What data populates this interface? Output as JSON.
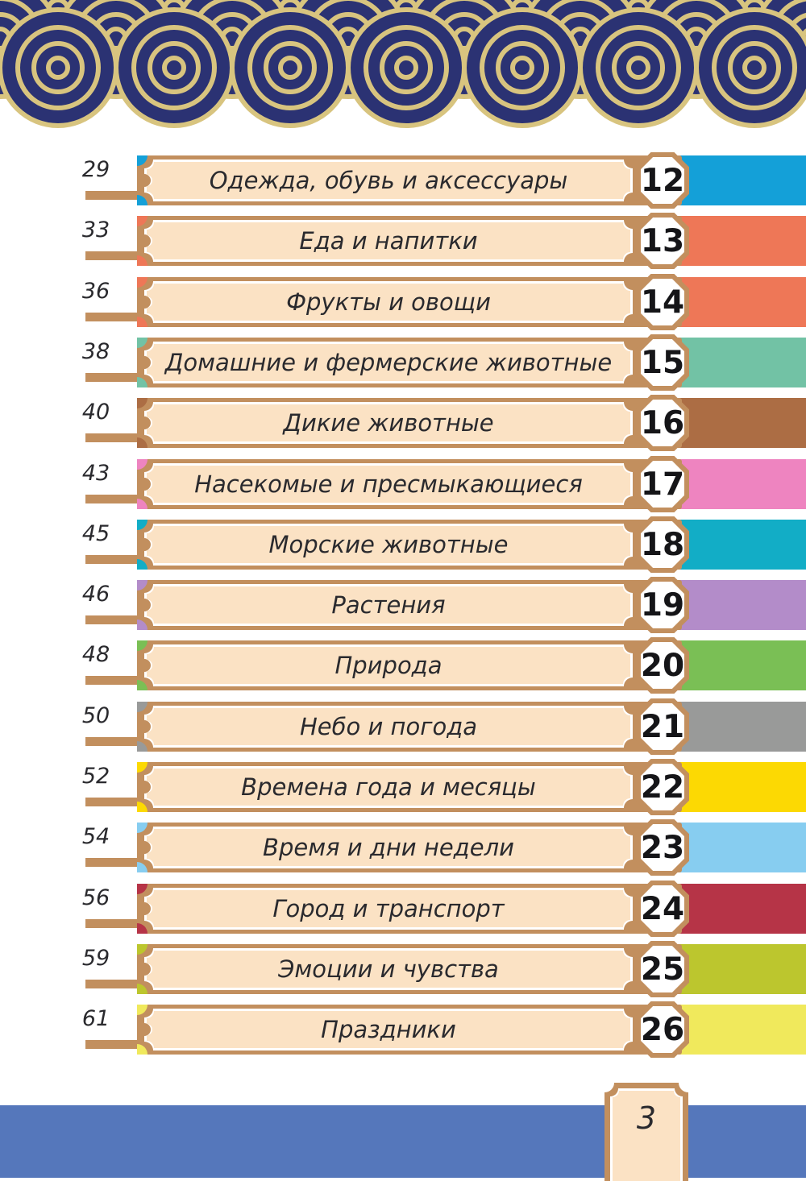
{
  "toc_rows": [
    {
      "page": "29",
      "title": "Одежда, обувь и аксессуары",
      "badge": "12",
      "color": "#14a0d8"
    },
    {
      "page": "33",
      "title": "Еда и напитки",
      "badge": "13",
      "color": "#ee7757"
    },
    {
      "page": "36",
      "title": "Фрукты и овощи",
      "badge": "14",
      "color": "#ee7757"
    },
    {
      "page": "38",
      "title": "Домашние и фермерские животные",
      "badge": "15",
      "color": "#72c2a5"
    },
    {
      "page": "40",
      "title": "Дикие животные",
      "badge": "16",
      "color": "#ac6d44"
    },
    {
      "page": "43",
      "title": "Насекомые и пресмыкающиеся",
      "badge": "17",
      "color": "#ee84c0"
    },
    {
      "page": "45",
      "title": "Морские животные",
      "badge": "18",
      "color": "#12adc6"
    },
    {
      "page": "46",
      "title": "Растения",
      "badge": "19",
      "color": "#b38cc9"
    },
    {
      "page": "48",
      "title": "Природа",
      "badge": "20",
      "color": "#7abf55"
    },
    {
      "page": "50",
      "title": "Небо и погода",
      "badge": "21",
      "color": "#999a99"
    },
    {
      "page": "52",
      "title": "Времена года и месяцы",
      "badge": "22",
      "color": "#fcd903"
    },
    {
      "page": "54",
      "title": "Время и дни недели",
      "badge": "23",
      "color": "#87cdf0"
    },
    {
      "page": "56",
      "title": "Город и транспорт",
      "badge": "24",
      "color": "#b63447"
    },
    {
      "page": "59",
      "title": "Эмоции и чувства",
      "badge": "25",
      "color": "#bcc62e"
    },
    {
      "page": "61",
      "title": "Праздники",
      "badge": "26",
      "color": "#f0e95c"
    }
  ],
  "footer": {
    "page_number": "3"
  },
  "colors": {
    "tan": "#c28f5e",
    "cream": "#fbe2c4",
    "navy": "#2b3273",
    "gold": "#d8c47f",
    "footer_blue": "#5577bb",
    "title_text": "#2a2a2e",
    "badge_text": "#151518",
    "badge_fill": "#ffffff"
  }
}
